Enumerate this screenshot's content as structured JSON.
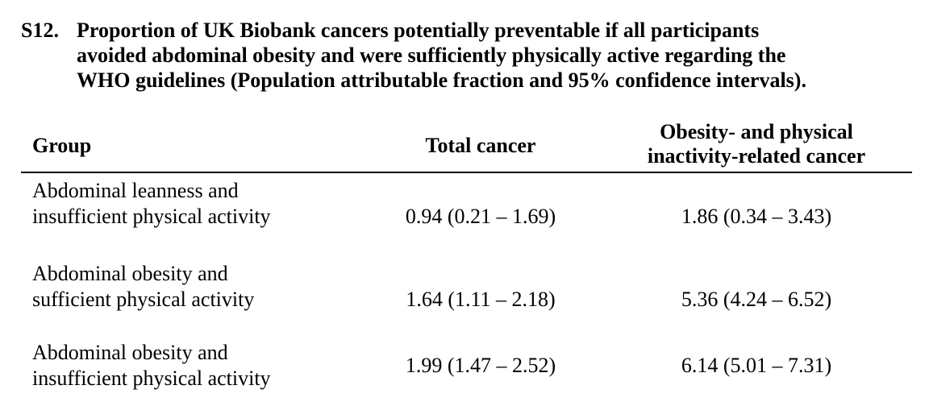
{
  "caption": {
    "label": "S12.",
    "lines": [
      "Proportion of UK Biobank cancers potentially preventable if all participants",
      "avoided abdominal obesity and were sufficiently physically active regarding the",
      "WHO guidelines (Population attributable fraction and 95% confidence intervals)."
    ]
  },
  "table": {
    "headers": {
      "group": "Group",
      "total": "Total cancer",
      "obesity_line1": "Obesity- and physical",
      "obesity_line2": "inactivity-related cancer"
    },
    "rows": [
      {
        "group_line1": "Abdominal leanness and",
        "group_line2": "insufficient physical activity",
        "total": "0.94 (0.21 – 1.69)",
        "obesity": "1.86 (0.34 – 3.43)"
      },
      {
        "group_line1": "Abdominal obesity and",
        "group_line2": "sufficient physical activity",
        "total": "1.64 (1.11 – 2.18)",
        "obesity": "5.36 (4.24 – 6.52)"
      },
      {
        "group_line1": "Abdominal obesity and",
        "group_line2": "insufficient physical activity",
        "total": "1.99 (1.47 – 2.52)",
        "obesity": "6.14 (5.01 – 7.31)"
      }
    ]
  }
}
